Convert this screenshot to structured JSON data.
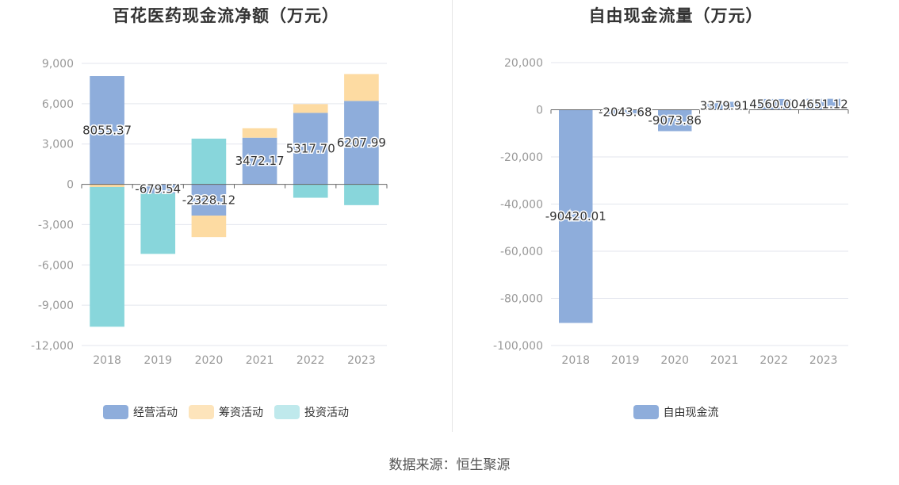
{
  "source_text": "数据来源：恒生聚源",
  "colors": {
    "operating": "#8eaddb",
    "financing": "#fddba2",
    "investing": "#88d6db",
    "free": "#8eaddb",
    "grid": "#e3e6ee",
    "axis": "#666666",
    "tick": "#999999"
  },
  "chart_data": [
    {
      "type": "bar",
      "stacked": true,
      "title": "百花医药现金流净额（万元）",
      "categories": [
        "2018",
        "2019",
        "2020",
        "2021",
        "2022",
        "2023"
      ],
      "ylim": [
        -12000,
        9000
      ],
      "yticks": [
        9000,
        6000,
        3000,
        0,
        -3000,
        -6000,
        -9000,
        -12000
      ],
      "ytick_labels": [
        "9,000",
        "6,000",
        "3,000",
        "0",
        "-3,000",
        "-6,000",
        "-9,000",
        "-12,000"
      ],
      "legend_position": "bottom",
      "series": [
        {
          "name": "经营活动",
          "color_key": "operating",
          "values": [
            8055.37,
            -679.54,
            -2328.12,
            3472.17,
            5317.7,
            6207.99
          ],
          "labels": [
            "8055.37",
            "-679.54",
            "-2328.12",
            "3472.17",
            "5317.70",
            "6207.99"
          ]
        },
        {
          "name": "筹资活动",
          "color_key": "financing",
          "values": [
            -200,
            0,
            -1600,
            700,
            650,
            2000
          ]
        },
        {
          "name": "投资活动",
          "color_key": "investing",
          "values": [
            -10400,
            -4500,
            3400,
            0,
            -1000,
            -1550
          ]
        }
      ]
    },
    {
      "type": "bar",
      "title": "自由现金流量（万元）",
      "categories": [
        "2018",
        "2019",
        "2020",
        "2021",
        "2022",
        "2023"
      ],
      "ylim": [
        -100000,
        20000
      ],
      "yticks": [
        20000,
        0,
        -20000,
        -40000,
        -60000,
        -80000,
        -100000
      ],
      "ytick_labels": [
        "20,000",
        "0",
        "-20,000",
        "-40,000",
        "-60,000",
        "-80,000",
        "-100,000"
      ],
      "legend_position": "bottom",
      "series": [
        {
          "name": "自由现金流",
          "color_key": "free",
          "values": [
            -90420.01,
            -2043.68,
            -9073.86,
            3379.91,
            4560.0,
            4651.12
          ],
          "labels": [
            "-90420.01",
            "-2043.68",
            "-9073.86",
            "3379.91",
            "4560.00",
            "4651.12"
          ]
        }
      ]
    }
  ]
}
